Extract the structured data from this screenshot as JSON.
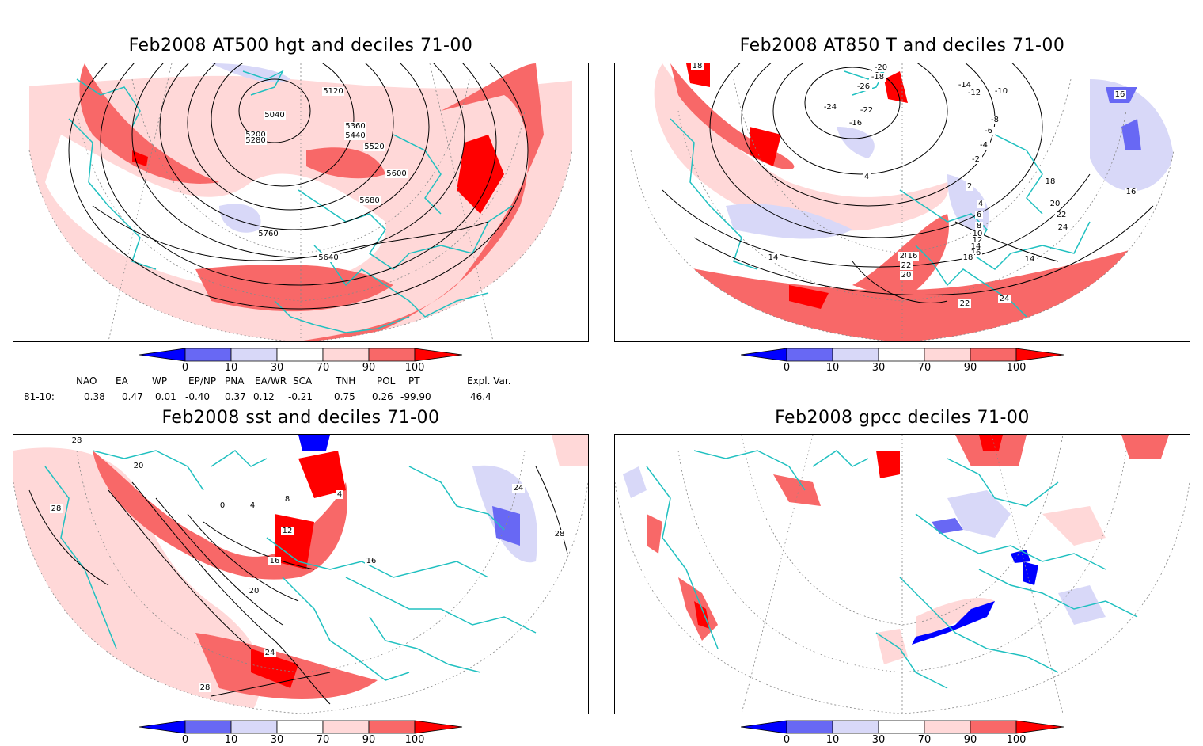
{
  "panels": [
    {
      "title": "Feb2008 AT500 hgt and deciles 71-00",
      "contour_labels": [
        "5040",
        "5120",
        "5200",
        "5280",
        "5360",
        "5440",
        "5520",
        "5600",
        "5680",
        "5760",
        "5640"
      ]
    },
    {
      "title": "Feb2008 AT850 T and deciles 71-00",
      "contour_labels": [
        "18",
        "-20",
        "-18",
        "-26",
        "-24",
        "-14",
        "-12",
        "-10",
        "-22",
        "-16",
        "-8",
        "-6",
        "-4",
        "-2",
        "2",
        "4",
        "16",
        "14",
        "18",
        "20",
        "22",
        "24",
        "16",
        "4",
        "6",
        "8",
        "10",
        "12",
        "14",
        "16",
        "18",
        "20",
        "22",
        "20",
        "22",
        "24",
        "14",
        "16"
      ]
    },
    {
      "title": "Feb2008 sst and deciles 71-00",
      "contour_labels": [
        "28",
        "20",
        "28",
        "0",
        "4",
        "8",
        "4",
        "12",
        "16",
        "20",
        "24",
        "28",
        "16",
        "24",
        "28"
      ]
    },
    {
      "title": "Feb2008 gpcc deciles 71-00",
      "contour_labels": []
    }
  ],
  "colorbar": {
    "labels": [
      "0",
      "10",
      "30",
      "70",
      "90",
      "100"
    ],
    "colors": {
      "c0": "#0000ff",
      "c1": "#6868f4",
      "c2": "#d8d8f8",
      "c3": "#ffffff",
      "c4": "#ffd8d8",
      "c5": "#f86868",
      "c6": "#ff0000"
    }
  },
  "indices": {
    "period_label": "81-10:",
    "names": [
      "NAO",
      "EA",
      "WP",
      "EP/NP",
      "PNA",
      "EA/WR",
      "SCA",
      "TNH",
      "POL",
      "PT",
      "Expl. Var."
    ],
    "values": [
      "0.38",
      "0.47",
      "0.01",
      "-0.40",
      "0.37",
      "0.12",
      "-0.21",
      "0.75",
      "0.26",
      "-99.90",
      "46.4"
    ]
  },
  "map_colors": {
    "coast": "#20c0c0",
    "contour": "#000000",
    "grid": "#888888"
  }
}
